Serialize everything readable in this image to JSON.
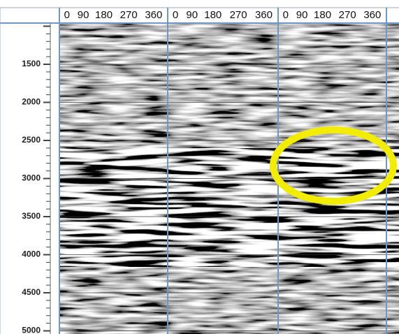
{
  "header": {
    "panels": [
      {
        "labels": [
          "0",
          "90",
          "180",
          "270",
          "360"
        ]
      },
      {
        "labels": [
          "0",
          "90",
          "180",
          "270",
          "360"
        ]
      },
      {
        "labels": [
          "0",
          "90",
          "180",
          "270",
          "360"
        ]
      }
    ]
  },
  "depth_axis": {
    "labels": [
      "1500",
      "2000",
      "2500",
      "3000",
      "3500",
      "4000",
      "4500",
      "5000"
    ]
  }
}
